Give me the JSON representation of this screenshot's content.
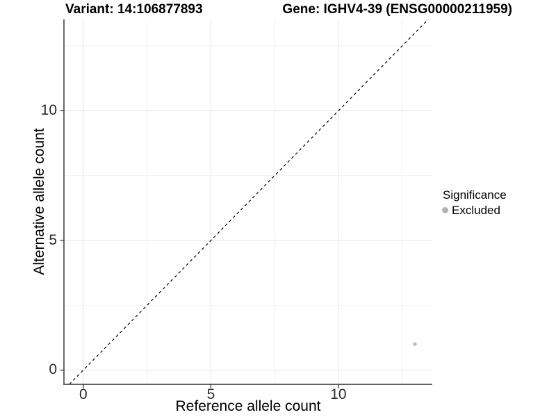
{
  "header": {
    "variant_title": "Variant: 14:106877893",
    "gene_title": "Gene: IGHV4-39 (ENSG00000211959)"
  },
  "chart_data": {
    "type": "scatter",
    "title_left": "Variant: 14:106877893",
    "title_right": "Gene: IGHV4-39 (ENSG00000211959)",
    "xlabel": "Reference allele count",
    "ylabel": "Alternative allele count",
    "xlim": [
      -0.76,
      13.68
    ],
    "ylim": [
      -0.55,
      13.52
    ],
    "x_major_ticks": [
      0,
      5,
      10
    ],
    "y_major_ticks": [
      0,
      5,
      10
    ],
    "x_minor_ticks": [
      2.5,
      7.5,
      12.5
    ],
    "y_minor_ticks": [
      2.5,
      7.5,
      12.5
    ],
    "grid": "major and minor, light grey on white",
    "legend_position": "right",
    "reference_line": {
      "kind": "identity y=x",
      "style": "dashed",
      "color": "#000000"
    },
    "series": [
      {
        "name": "Excluded",
        "color": "#bfbfbf",
        "points": [
          {
            "x": 13,
            "y": 1
          }
        ]
      }
    ]
  },
  "legend": {
    "title": "Significance",
    "items": [
      {
        "label": "Excluded",
        "color": "#b3b3b3"
      }
    ]
  },
  "colors": {
    "background": "#ffffff",
    "grid_major": "#e5e5e5",
    "grid_minor": "#f2f2f2",
    "axis_line": "#4d4d4d",
    "tick_mark": "#383838",
    "tick_text": "#2b2b2b",
    "title_text": "#000000"
  }
}
